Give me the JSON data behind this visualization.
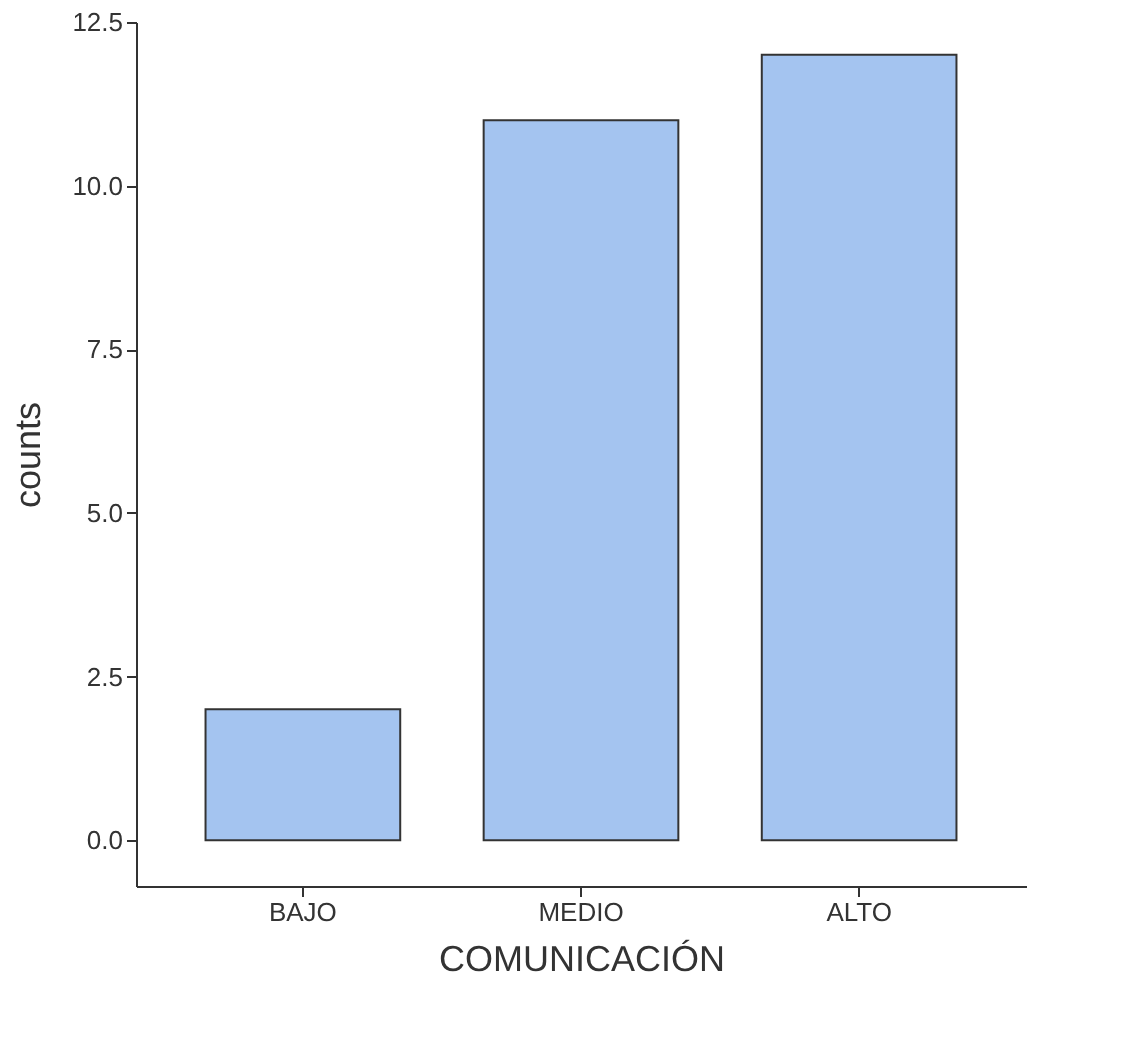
{
  "chart_data": {
    "type": "bar",
    "xlabel": "COMUNICACIÓN",
    "ylabel": "counts",
    "categories": [
      "BAJO",
      "MEDIO",
      "ALTO"
    ],
    "series": [
      {
        "color": "#a4c4f0",
        "values": [
          2,
          11,
          12
        ]
      }
    ],
    "ylim": [
      -0.7,
      12.5
    ],
    "yticks": [
      {
        "value": 0,
        "label": "0.0"
      },
      2.5,
      {
        "value": 5,
        "label": "5.0"
      },
      7.5,
      {
        "value": 10,
        "label": "10.0"
      },
      12.5
    ],
    "grid": false
  }
}
